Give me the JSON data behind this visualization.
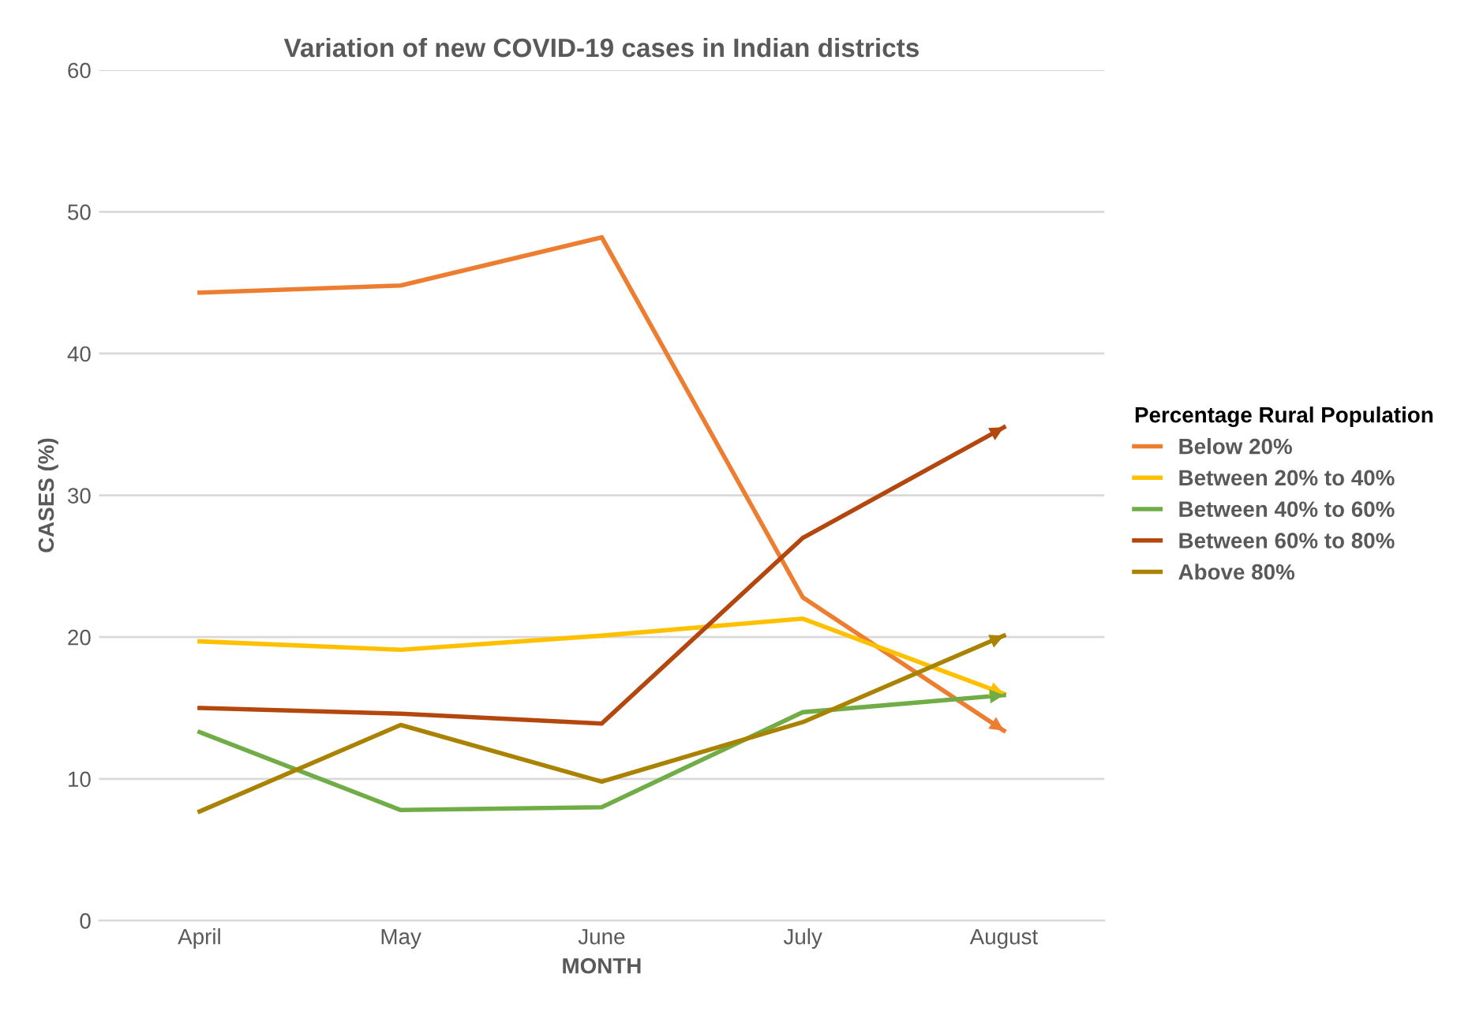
{
  "chart_data": {
    "type": "line",
    "title": "Variation of new COVID-19 cases in Indian districts",
    "xlabel": "MONTH",
    "ylabel": "CASES (%)",
    "legend_title": "Percentage Rural Population",
    "categories": [
      "April",
      "May",
      "June",
      "July",
      "August"
    ],
    "series": [
      {
        "name": "Below 20%",
        "color": "#ed7d31",
        "values": [
          44.3,
          44.8,
          48.2,
          22.8,
          13.4
        ]
      },
      {
        "name": "Between 20% to 40%",
        "color": "#ffc000",
        "values": [
          19.7,
          19.1,
          20.1,
          21.3,
          16.0
        ]
      },
      {
        "name": "Between 40% to 60%",
        "color": "#70ad47",
        "values": [
          13.3,
          7.8,
          8.0,
          14.7,
          15.9
        ]
      },
      {
        "name": "Between 60% to 80%",
        "color": "#b4470e",
        "values": [
          15.0,
          14.6,
          13.9,
          27.0,
          34.8
        ]
      },
      {
        "name": "Above 80%",
        "color": "#a98200",
        "values": [
          7.7,
          13.8,
          9.8,
          14.0,
          20.1
        ]
      }
    ],
    "ylim": [
      0,
      60
    ],
    "yticks": [
      0,
      10,
      20,
      30,
      40,
      50,
      60
    ],
    "grid": "y",
    "legend": "right",
    "marker": "none",
    "line_style": "solid"
  }
}
